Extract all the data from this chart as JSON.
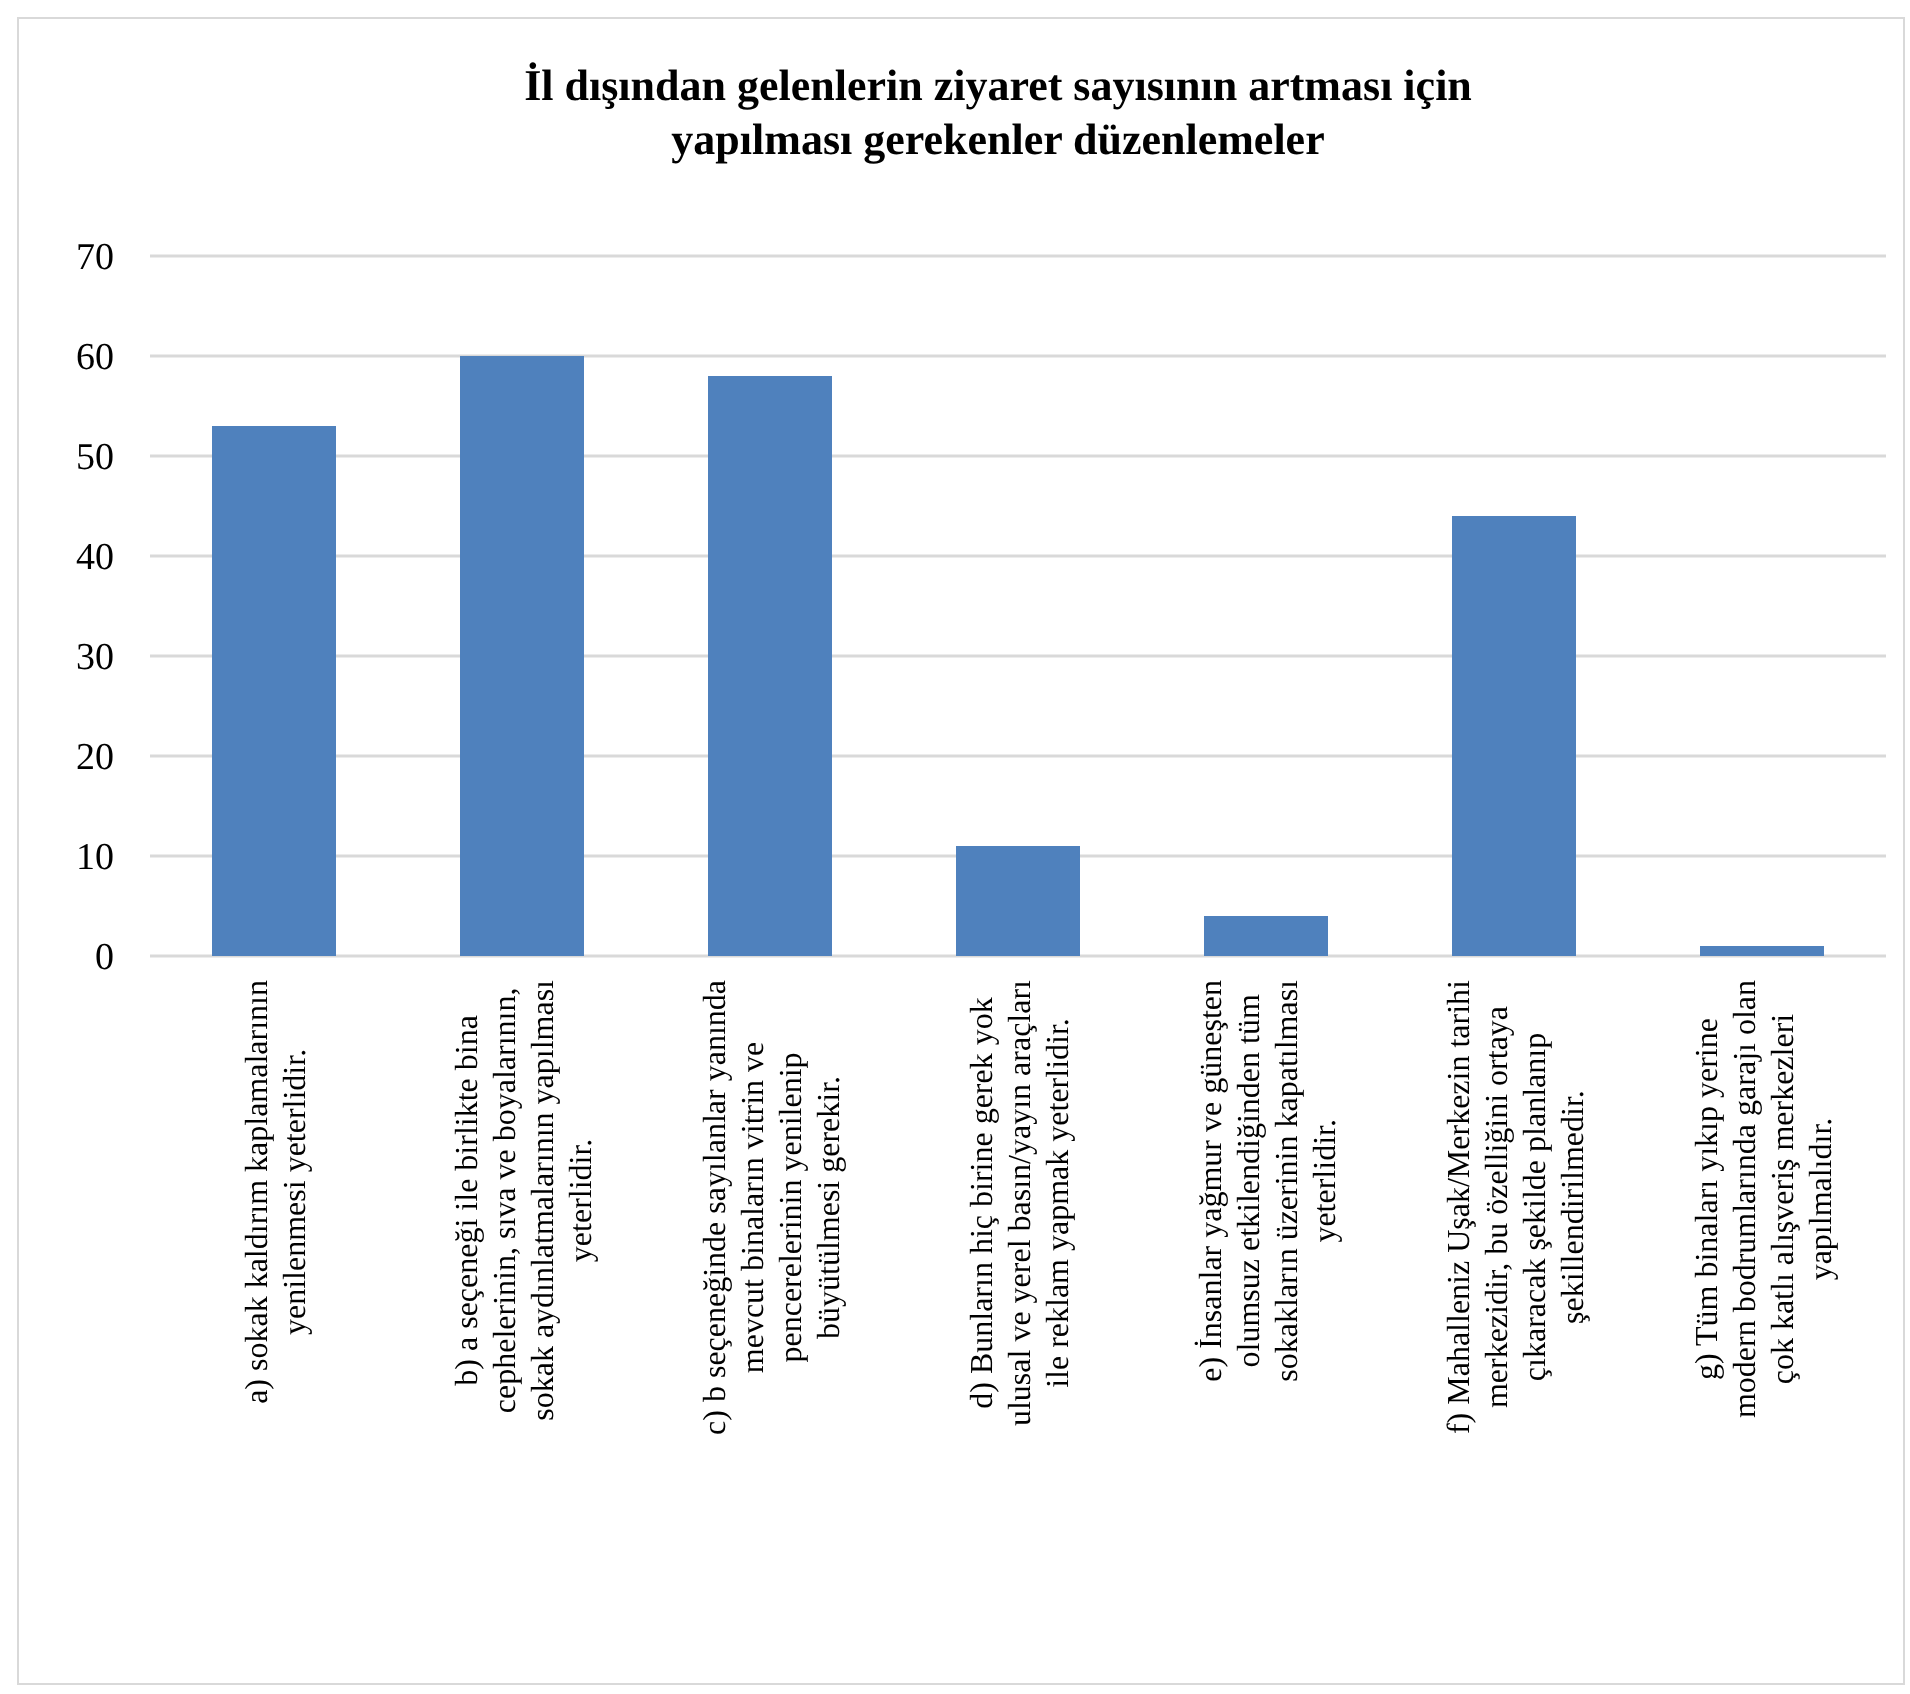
{
  "chart_data": {
    "type": "bar",
    "title": "İl dışından gelenlerin ziyaret sayısının artması için\nyapılması gerekenler düzenlemeler",
    "categories": [
      "a) sokak kaldırım kaplamalarının\nyenilenmesi yeterlidir.",
      "b) a seçeneği ile birlikte bina\ncephelerinin, sıva ve boyalarının,\nsokak aydınlatmalarının yapılması\nyeterlidir.",
      "c) b seçeneğinde sayılanlar yanında\nmevcut binaların vitrin ve\npencerelerinin yenilenip\nbüyütülmesi gerekir.",
      "d) Bunların hiç birine gerek yok\nulusal ve yerel basın/yayın araçları\nile reklam yapmak yeterlidir.",
      "e) İnsanlar yağmur ve güneşten\nolumsuz etkilendiğinden tüm\nsokakların üzerinin kapatılması\nyeterlidir.",
      "f) Mahalleniz Uşak/Merkezin tarihi\nmerkezidir, bu özelliğini ortaya\nçıkaracak şekilde planlanıp\nşekillendirilmedir.",
      "g) Tüm binaları yıkıp yerine\nmodern bodrumlarında garajı olan\nçok katlı alışveriş merkezleri\nyapılmalıdır."
    ],
    "values": [
      53,
      60,
      58,
      11,
      4,
      44,
      1
    ],
    "color": "#4f81bd",
    "ylim": [
      0,
      70
    ],
    "yticks": [
      0,
      10,
      20,
      30,
      40,
      50,
      60,
      70
    ],
    "grid": "y"
  }
}
